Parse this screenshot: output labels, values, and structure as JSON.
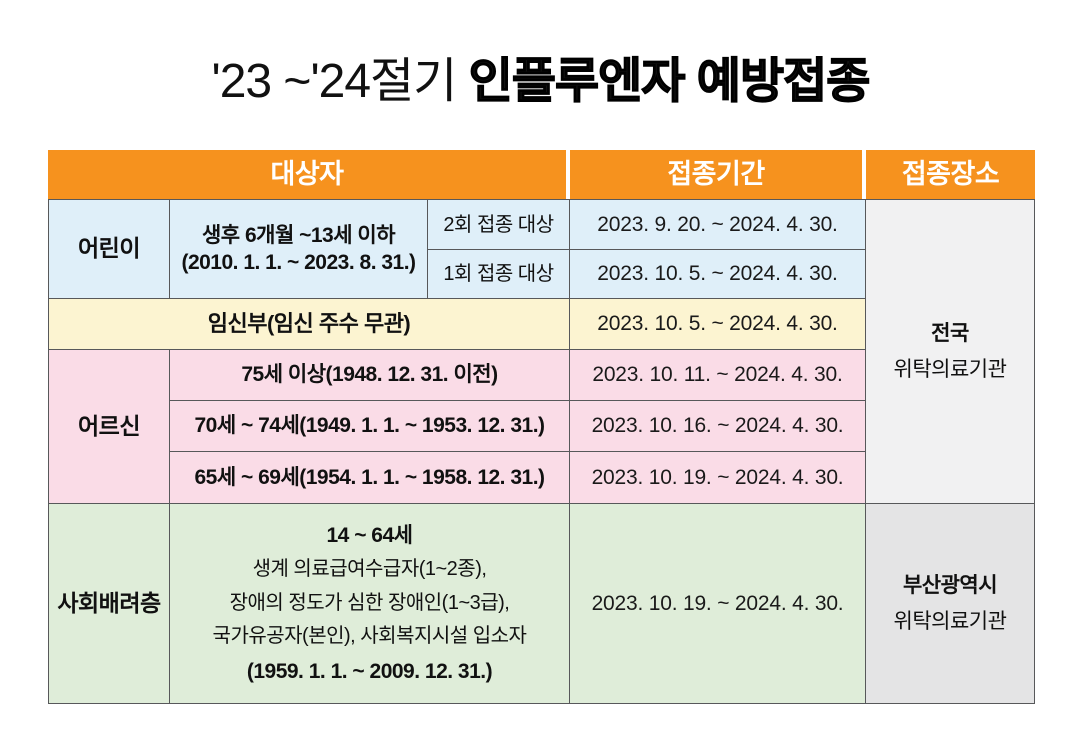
{
  "title": {
    "prefix": "'23 ~'24절기 ",
    "emphasis": "인플루엔자 예방접종"
  },
  "colors": {
    "header_orange": "#F6921E",
    "row_children_blue": "#DFEFF9",
    "row_pregnant_yellow": "#FCF4D1",
    "row_seniors_pink": "#FADCE7",
    "row_social_green": "#DFEDD9",
    "place_national_gray": "#F1F1F2",
    "place_busan_gray": "#E4E4E5",
    "border_gray": "#57585A",
    "header_text": "#FFFFFF",
    "body_text": "#111111"
  },
  "table": {
    "header": {
      "target": "대상자",
      "period": "접종기간",
      "place": "접종장소"
    },
    "children": {
      "label": "어린이",
      "desc_line1": "생후 6개월 ~13세 이하",
      "desc_line2": "(2010. 1. 1. ~ 2023. 8. 31.)",
      "dose2_label": "2회 접종 대상",
      "dose2_period": "2023. 9. 20. ~ 2024. 4. 30.",
      "dose1_label": "1회 접종 대상",
      "dose1_period": "2023. 10. 5. ~ 2024. 4. 30."
    },
    "pregnant": {
      "label": "임신부(임신 주수 무관)",
      "period": "2023. 10. 5. ~ 2024. 4. 30."
    },
    "seniors": {
      "label": "어르신",
      "rows": [
        {
          "desc": "75세 이상(1948. 12. 31. 이전)",
          "period": "2023. 10. 11. ~ 2024. 4. 30."
        },
        {
          "desc": "70세 ~ 74세(1949. 1. 1. ~ 1953. 12. 31.)",
          "period": "2023. 10. 16. ~ 2024. 4. 30."
        },
        {
          "desc": "65세 ~ 69세(1954. 1. 1. ~ 1958. 12. 31.)",
          "period": "2023. 10. 19. ~ 2024. 4. 30."
        }
      ]
    },
    "social": {
      "label": "사회배려층",
      "desc_title": "14 ~ 64세",
      "desc_lines": [
        "생계 의료급여수급자(1~2종),",
        "장애의 정도가 심한 장애인(1~3급),",
        "국가유공자(본인), 사회복지시설 입소자"
      ],
      "desc_range": "(1959. 1. 1. ~ 2009. 12. 31.)",
      "period": "2023. 10. 19. ~ 2024. 4. 30."
    },
    "place_national": {
      "line1": "전국",
      "line2": "위탁의료기관"
    },
    "place_busan": {
      "line1": "부산광역시",
      "line2": "위탁의료기관"
    }
  }
}
